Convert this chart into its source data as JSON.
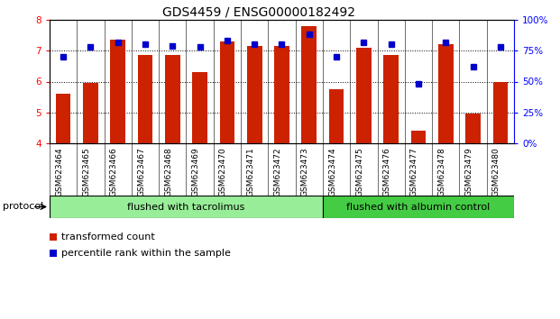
{
  "title": "GDS4459 / ENSG00000182492",
  "samples": [
    "GSM623464",
    "GSM623465",
    "GSM623466",
    "GSM623467",
    "GSM623468",
    "GSM623469",
    "GSM623470",
    "GSM623471",
    "GSM623472",
    "GSM623473",
    "GSM623474",
    "GSM623475",
    "GSM623476",
    "GSM623477",
    "GSM623478",
    "GSM623479",
    "GSM623480"
  ],
  "bar_values": [
    5.6,
    5.95,
    7.35,
    6.85,
    6.85,
    6.3,
    7.3,
    7.15,
    7.15,
    7.8,
    5.75,
    7.1,
    6.85,
    4.4,
    7.2,
    4.95,
    6.0
  ],
  "dot_values": [
    70,
    78,
    82,
    80,
    79,
    78,
    83,
    80,
    80,
    88,
    70,
    82,
    80,
    48,
    82,
    62,
    78
  ],
  "bar_color": "#cc2200",
  "dot_color": "#0000cc",
  "ylim_left": [
    4,
    8
  ],
  "ylim_right": [
    0,
    100
  ],
  "yticks_left": [
    4,
    5,
    6,
    7,
    8
  ],
  "yticks_right": [
    0,
    25,
    50,
    75,
    100
  ],
  "ytick_labels_right": [
    "0%",
    "25%",
    "50%",
    "75%",
    "100%"
  ],
  "grid_lines": [
    5,
    6,
    7
  ],
  "group1_count": 10,
  "group2_count": 7,
  "group1_label": "flushed with tacrolimus",
  "group2_label": "flushed with albumin control",
  "protocol_label": "protocol",
  "legend_bar_label": "transformed count",
  "legend_dot_label": "percentile rank within the sample",
  "bg_xtick": "#c8c8c8",
  "bg_group1": "#98ee98",
  "bg_group2": "#44cc44",
  "title_fontsize": 10,
  "tick_fontsize": 7.5,
  "label_fontsize": 8
}
